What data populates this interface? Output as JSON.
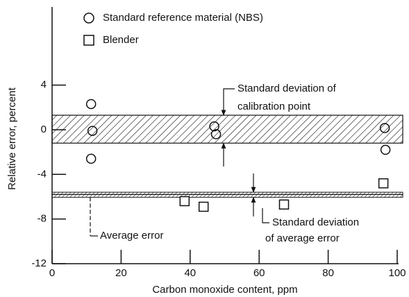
{
  "chart_data": {
    "type": "scatter",
    "xlabel": "Carbon monoxide content, ppm",
    "ylabel": "Relative error, percent",
    "xlim": [
      0,
      100
    ],
    "xticks": [
      0,
      20,
      40,
      60,
      80,
      100
    ],
    "ylim": [
      -12,
      11
    ],
    "yticks": [
      4,
      0,
      -4,
      -8,
      -12
    ],
    "series": [
      {
        "name": "Standard reference material (NBS)",
        "marker": "circle",
        "color": "#111111",
        "x": [
          11.3,
          11.7,
          11.3,
          47,
          47.5,
          96.4,
          96.6
        ],
        "values": [
          2.3,
          -0.1,
          -2.6,
          0.3,
          -0.4,
          0.15,
          -1.8
        ]
      },
      {
        "name": "Blender",
        "marker": "square",
        "color": "#111111",
        "x": [
          38.4,
          43.9,
          67.2,
          96
        ],
        "values": [
          -6.4,
          -6.9,
          -6.7,
          -4.8
        ]
      }
    ],
    "calibration_band": [
      -1.2,
      1.3
    ],
    "average_error_band": [
      -6.05,
      -5.6
    ],
    "average_error": -5.8,
    "annotations": {
      "calibration": [
        "Standard deviation of",
        "calibration point"
      ],
      "average_error": "Average error",
      "average_error_sd": [
        "Standard deviation",
        "of average error"
      ]
    }
  }
}
